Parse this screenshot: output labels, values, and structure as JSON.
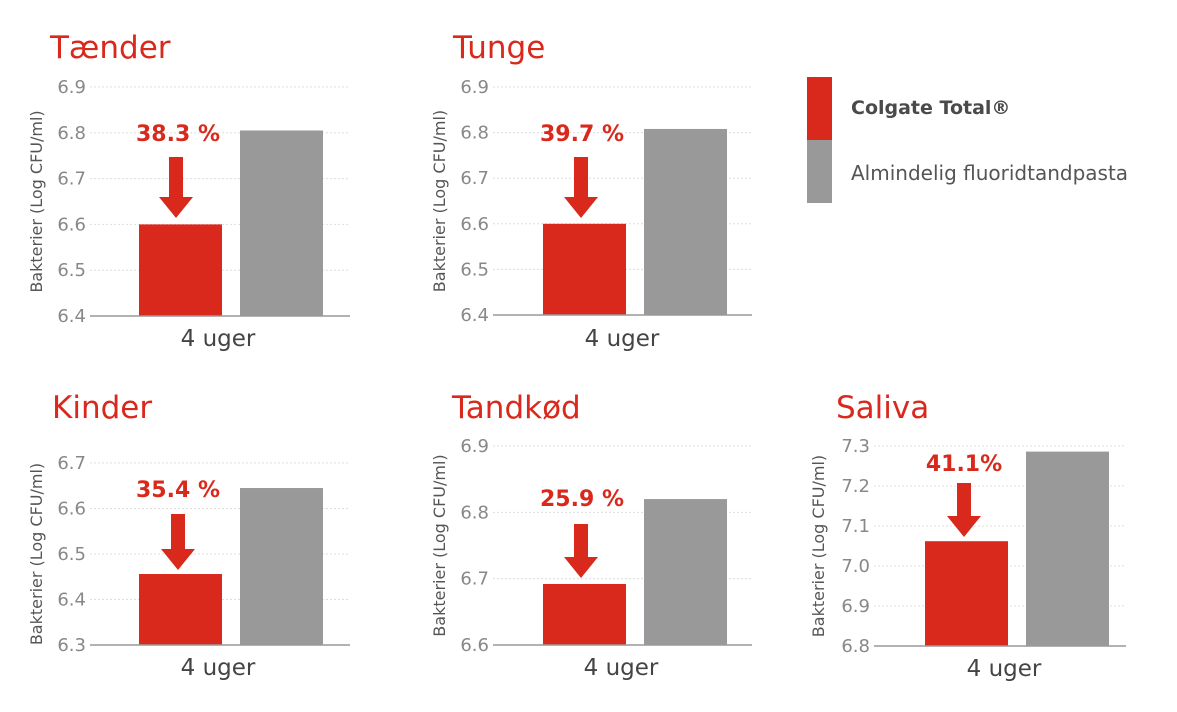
{
  "colors": {
    "accent": "#d9291c",
    "comparison": "#999999",
    "grid": "#dddddd",
    "axis": "#999999",
    "text": "#555555"
  },
  "legend": [
    {
      "label": "Colgate Total®",
      "color": "#d9291c"
    },
    {
      "label": "Almindelig fluoridtandpasta",
      "color": "#999999"
    }
  ],
  "chart_data": [
    {
      "type": "bar",
      "title": "Tænder",
      "ylabel": "Bakterier (Log CFU/ml)",
      "categories": [
        "4 uger"
      ],
      "ylim": [
        6.4,
        6.9
      ],
      "yticks": [
        "6.9",
        "6.8",
        "6.7",
        "6.6",
        "6.5",
        "6.4"
      ],
      "series": [
        {
          "name": "Colgate Total®",
          "values": [
            6.6
          ]
        },
        {
          "name": "Almindelig fluoridtandpasta",
          "values": [
            6.805
          ]
        }
      ],
      "annotation": "38.3 %"
    },
    {
      "type": "bar",
      "title": "Tunge",
      "ylabel": "Bakterier (Log CFU/ml)",
      "categories": [
        "4 uger"
      ],
      "ylim": [
        6.4,
        6.9
      ],
      "yticks": [
        "6.9",
        "6.8",
        "6.7",
        "6.6",
        "6.5",
        "6.4"
      ],
      "series": [
        {
          "name": "Colgate Total®",
          "values": [
            6.6
          ]
        },
        {
          "name": "Almindelig fluoridtandpasta",
          "values": [
            6.808
          ]
        }
      ],
      "annotation": "39.7 %"
    },
    {
      "type": "bar",
      "title": "Kinder",
      "ylabel": "Bakterier (Log CFU/ml)",
      "categories": [
        "4 uger"
      ],
      "ylim": [
        6.3,
        6.7
      ],
      "yticks": [
        "6.7",
        "6.6",
        "6.5",
        "6.4",
        "6.3"
      ],
      "series": [
        {
          "name": "Colgate Total®",
          "values": [
            6.456
          ]
        },
        {
          "name": "Almindelig fluoridtandpasta",
          "values": [
            6.645
          ]
        }
      ],
      "annotation": "35.4 %"
    },
    {
      "type": "bar",
      "title": "Tandkød",
      "ylabel": "Bakterier (Log CFU/ml)",
      "categories": [
        "4 uger"
      ],
      "ylim": [
        6.6,
        6.9
      ],
      "yticks": [
        "6.9",
        "6.8",
        "6.7",
        "6.6"
      ],
      "series": [
        {
          "name": "Colgate Total®",
          "values": [
            6.692
          ]
        },
        {
          "name": "Almindelig fluoridtandpasta",
          "values": [
            6.82
          ]
        }
      ],
      "annotation": "25.9 %"
    },
    {
      "type": "bar",
      "title": "Saliva",
      "ylabel": "Bakterier (Log CFU/ml)",
      "categories": [
        "4 uger"
      ],
      "ylim": [
        6.8,
        7.3
      ],
      "yticks": [
        "7.3",
        "7.2",
        "7.1",
        "7.0",
        "6.9",
        "6.8"
      ],
      "series": [
        {
          "name": "Colgate Total®",
          "values": [
            7.062
          ]
        },
        {
          "name": "Almindelig fluoridtandpasta",
          "values": [
            7.286
          ]
        }
      ],
      "annotation": "41.1%"
    }
  ]
}
